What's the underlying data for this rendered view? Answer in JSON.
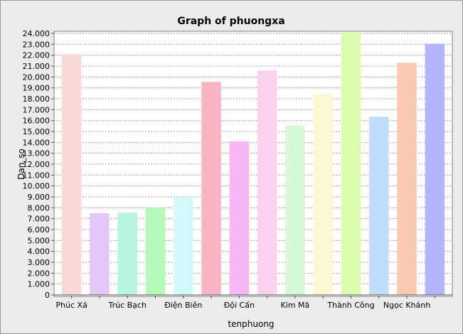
{
  "chart_data": {
    "type": "bar",
    "title": "Graph of phuongxa",
    "xlabel": "tenphuong",
    "ylabel": "Dan_so",
    "ylim": [
      0,
      24000
    ],
    "ytick_step": 1000,
    "ytick_labels": [
      "0",
      "1.000",
      "2.000",
      "3.000",
      "4.000",
      "5.000",
      "6.000",
      "7.000",
      "8.000",
      "9.000",
      "10.000",
      "11.000",
      "12.000",
      "13.000",
      "14.000",
      "15.000",
      "16.000",
      "17.000",
      "18.000",
      "19.000",
      "20.000",
      "21.000",
      "22.000",
      "23.000",
      "24.000"
    ],
    "grid": true,
    "legend": "none",
    "categories": [
      "Phúc Xá",
      "",
      "Trúc Bạch",
      "",
      "Điện Biên",
      "",
      "Đội Cấn",
      "",
      "Kim Mã",
      "",
      "Thành Công",
      "",
      "Ngọc Khánh",
      ""
    ],
    "values": [
      22100,
      7500,
      7550,
      8000,
      8900,
      19550,
      14100,
      20600,
      15550,
      18450,
      24100,
      16350,
      21300,
      23050
    ],
    "colors": [
      "#f9d9d7",
      "#e2c7f8",
      "#b6f6e1",
      "#b4f9b8",
      "#d4f9fd",
      "#fab4c3",
      "#f7b7f6",
      "#fad1ee",
      "#d6fad6",
      "#fcf8d4",
      "#dcfcae",
      "#bfddfc",
      "#fbc9b2",
      "#b4b4fa"
    ]
  }
}
